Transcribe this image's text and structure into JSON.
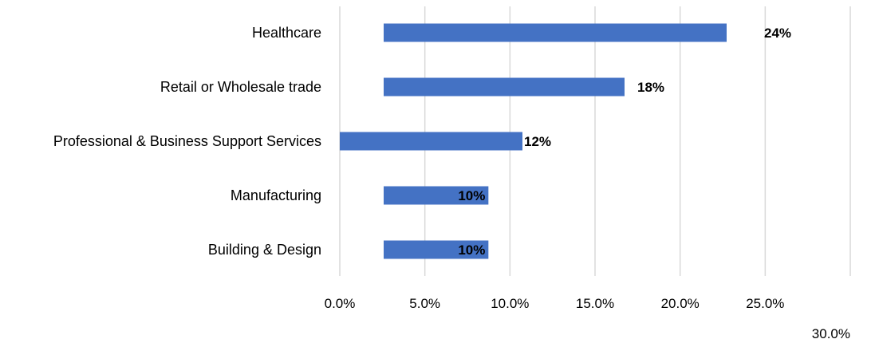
{
  "chart_data": {
    "type": "bar",
    "orientation": "horizontal",
    "categories": [
      "Healthcare",
      "Retail or Wholesale trade",
      "Professional & Business Support Services",
      "Manufacturing",
      "Building & Design"
    ],
    "values": [
      24,
      18,
      12,
      10,
      10
    ],
    "data_labels": [
      "24%",
      "18%",
      "12%",
      "10%",
      "10%"
    ],
    "x_ticks": [
      0,
      5,
      10,
      15,
      20,
      25,
      30
    ],
    "x_tick_labels": [
      "0.0%",
      "5.0%",
      "10.0%",
      "15.0%",
      "20.0%",
      "25.0%",
      "30.0%"
    ],
    "xlim": [
      0,
      30
    ],
    "grid": true,
    "bar_color": "#4472c4",
    "title": "",
    "xlabel": "",
    "ylabel": ""
  }
}
